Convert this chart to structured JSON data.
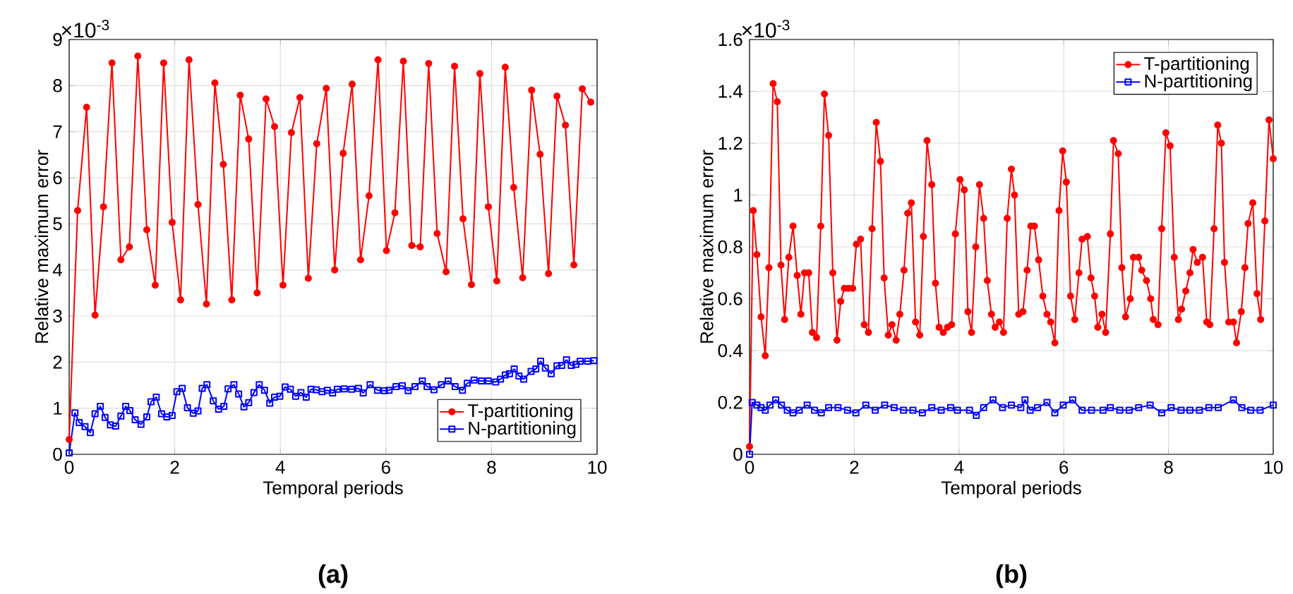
{
  "chart_data": [
    {
      "type": "line",
      "title": "**(a)**",
      "xlabel": "Temporal periods",
      "ylabel": "Relative maximum error",
      "annotations": [
        "×10$^{-3}$"
      ],
      "xlim": [
        0,
        10
      ],
      "ylim": [
        0,
        9
      ],
      "xticks": [
        0,
        2,
        4,
        6,
        8,
        10
      ],
      "yticks": [
        0,
        1,
        2,
        3,
        4,
        5,
        6,
        7,
        8,
        9
      ],
      "grid": true,
      "legend": "bottom right",
      "line_style": "solid",
      "series": [
        {
          "name": "T-partitioning",
          "color": "#ff0000",
          "marker": "circle",
          "x": [
            0,
            0.16,
            0.33,
            0.49,
            0.65,
            0.81,
            0.98,
            1.14,
            1.3,
            1.47,
            1.63,
            1.79,
            1.95,
            2.11,
            2.27,
            2.44,
            2.6,
            2.76,
            2.92,
            3.08,
            3.24,
            3.4,
            3.56,
            3.73,
            3.89,
            4.05,
            4.21,
            4.37,
            4.53,
            4.69,
            4.87,
            5.03,
            5.19,
            5.36,
            5.52,
            5.68,
            5.85,
            6.01,
            6.17,
            6.33,
            6.49,
            6.65,
            6.81,
            6.97,
            7.14,
            7.3,
            7.46,
            7.62,
            7.78,
            7.94,
            8.1,
            8.26,
            8.42,
            8.59,
            8.76,
            8.92,
            9.08,
            9.24,
            9.4,
            9.56,
            9.72,
            9.88
          ],
          "values": [
            0.32,
            5.29,
            7.53,
            3.02,
            5.37,
            8.49,
            4.22,
            4.5,
            8.64,
            4.87,
            3.67,
            8.49,
            5.03,
            3.35,
            8.56,
            5.42,
            3.26,
            8.06,
            6.29,
            3.35,
            7.79,
            6.84,
            3.5,
            7.71,
            7.11,
            3.67,
            6.98,
            7.74,
            3.82,
            6.74,
            7.94,
            4.0,
            6.53,
            8.03,
            4.22,
            5.61,
            8.56,
            4.42,
            5.24,
            8.53,
            4.53,
            4.5,
            8.48,
            4.79,
            3.96,
            8.42,
            5.11,
            3.68,
            8.26,
            5.37,
            3.76,
            8.4,
            5.79,
            3.83,
            7.9,
            6.51,
            3.92,
            7.77,
            7.14,
            4.11,
            7.93,
            7.64
          ]
        },
        {
          "name": "N-partitioning",
          "color": "#0000ff",
          "marker": "square",
          "x": [
            0,
            0.11,
            0.19,
            0.3,
            0.4,
            0.49,
            0.59,
            0.68,
            0.78,
            0.88,
            0.98,
            1.07,
            1.15,
            1.25,
            1.36,
            1.47,
            1.55,
            1.65,
            1.75,
            1.85,
            1.95,
            2.04,
            2.14,
            2.24,
            2.35,
            2.44,
            2.52,
            2.61,
            2.73,
            2.83,
            2.93,
            3.01,
            3.12,
            3.21,
            3.31,
            3.4,
            3.5,
            3.6,
            3.7,
            3.8,
            3.89,
            3.99,
            4.09,
            4.19,
            4.29,
            4.39,
            4.49,
            4.58,
            4.68,
            4.79,
            4.89,
            4.99,
            5.08,
            5.21,
            5.35,
            5.48,
            5.57,
            5.7,
            5.84,
            5.97,
            6.06,
            6.19,
            6.31,
            6.42,
            6.55,
            6.69,
            6.78,
            6.91,
            7.05,
            7.18,
            7.31,
            7.45,
            7.54,
            7.67,
            7.81,
            7.94,
            8.08,
            8.17,
            8.26,
            8.34,
            8.43,
            8.52,
            8.61,
            8.75,
            8.84,
            8.93,
            9.02,
            9.13,
            9.24,
            9.33,
            9.42,
            9.51,
            9.6,
            9.68,
            9.82,
            9.94
          ],
          "values": [
            0.03,
            0.9,
            0.69,
            0.6,
            0.47,
            0.88,
            1.04,
            0.8,
            0.64,
            0.61,
            0.83,
            1.04,
            0.95,
            0.75,
            0.65,
            0.81,
            1.14,
            1.24,
            0.88,
            0.81,
            0.84,
            1.36,
            1.43,
            1.01,
            0.89,
            0.94,
            1.43,
            1.51,
            1.16,
            0.98,
            1.04,
            1.42,
            1.51,
            1.31,
            1.03,
            1.12,
            1.34,
            1.51,
            1.39,
            1.11,
            1.24,
            1.26,
            1.46,
            1.41,
            1.26,
            1.34,
            1.24,
            1.41,
            1.4,
            1.36,
            1.39,
            1.33,
            1.41,
            1.42,
            1.41,
            1.43,
            1.33,
            1.51,
            1.39,
            1.38,
            1.39,
            1.47,
            1.49,
            1.38,
            1.47,
            1.59,
            1.47,
            1.4,
            1.51,
            1.59,
            1.47,
            1.39,
            1.54,
            1.61,
            1.59,
            1.59,
            1.57,
            1.63,
            1.72,
            1.75,
            1.85,
            1.7,
            1.63,
            1.8,
            1.85,
            2.02,
            1.87,
            1.75,
            1.92,
            1.93,
            2.05,
            1.93,
            1.95,
            2.02,
            2.02,
            2.03
          ]
        }
      ]
    },
    {
      "type": "line",
      "title": "**(b)**",
      "xlabel": "Temporal periods",
      "ylabel": "Relative maximum error",
      "annotations": [
        "×10$^{-3}$"
      ],
      "xlim": [
        0,
        10
      ],
      "ylim": [
        0,
        1.6
      ],
      "xticks": [
        0,
        2,
        4,
        6,
        8,
        10
      ],
      "yticks": [
        0,
        0.2,
        0.4,
        0.6,
        0.8,
        1,
        1.2,
        1.4,
        1.6
      ],
      "grid": true,
      "legend": "top right",
      "line_style": "solid",
      "series": [
        {
          "name": "T-partitioning",
          "color": "#ff0000",
          "marker": "circle",
          "x": [
            0,
            0.07,
            0.14,
            0.22,
            0.3,
            0.37,
            0.45,
            0.53,
            0.6,
            0.67,
            0.75,
            0.83,
            0.91,
            0.98,
            1.05,
            1.13,
            1.2,
            1.28,
            1.36,
            1.43,
            1.51,
            1.59,
            1.67,
            1.74,
            1.81,
            1.89,
            1.97,
            2.04,
            2.12,
            2.19,
            2.27,
            2.34,
            2.42,
            2.5,
            2.57,
            2.65,
            2.72,
            2.8,
            2.87,
            2.95,
            3.02,
            3.09,
            3.17,
            3.25,
            3.32,
            3.39,
            3.48,
            3.55,
            3.62,
            3.7,
            3.78,
            3.86,
            3.93,
            4.02,
            4.1,
            4.17,
            4.24,
            4.32,
            4.39,
            4.47,
            4.54,
            4.62,
            4.69,
            4.77,
            4.85,
            4.92,
            5.0,
            5.06,
            5.14,
            5.22,
            5.3,
            5.37,
            5.44,
            5.52,
            5.6,
            5.68,
            5.75,
            5.83,
            5.91,
            5.98,
            6.05,
            6.13,
            6.21,
            6.29,
            6.35,
            6.45,
            6.52,
            6.59,
            6.65,
            6.73,
            6.8,
            6.89,
            6.95,
            7.04,
            7.11,
            7.18,
            7.27,
            7.33,
            7.43,
            7.49,
            7.58,
            7.66,
            7.71,
            7.8,
            7.87,
            7.95,
            8.03,
            8.11,
            8.19,
            8.25,
            8.33,
            8.41,
            8.47,
            8.55,
            8.65,
            8.73,
            8.79,
            8.87,
            8.94,
            9.01,
            9.07,
            9.15,
            9.24,
            9.3,
            9.39,
            9.46,
            9.52,
            9.61,
            9.69,
            9.76,
            9.84,
            9.92,
            10.0
          ],
          "values": [
            0.03,
            0.94,
            0.77,
            0.53,
            0.38,
            0.72,
            1.43,
            1.36,
            0.73,
            0.52,
            0.76,
            0.88,
            0.69,
            0.54,
            0.7,
            0.7,
            0.47,
            0.45,
            0.88,
            1.39,
            1.23,
            0.7,
            0.44,
            0.59,
            0.64,
            0.64,
            0.64,
            0.81,
            0.83,
            0.5,
            0.47,
            0.87,
            1.28,
            1.13,
            0.68,
            0.46,
            0.5,
            0.44,
            0.54,
            0.71,
            0.93,
            0.97,
            0.51,
            0.46,
            0.84,
            1.21,
            1.04,
            0.66,
            0.49,
            0.47,
            0.49,
            0.5,
            0.85,
            1.06,
            1.02,
            0.55,
            0.47,
            0.8,
            1.04,
            0.91,
            0.67,
            0.54,
            0.49,
            0.51,
            0.47,
            0.91,
            1.1,
            1.0,
            0.54,
            0.55,
            0.71,
            0.88,
            0.88,
            0.75,
            0.61,
            0.54,
            0.51,
            0.43,
            0.94,
            1.17,
            1.05,
            0.61,
            0.52,
            0.7,
            0.83,
            0.84,
            0.68,
            0.61,
            0.49,
            0.54,
            0.47,
            0.85,
            1.21,
            1.16,
            0.72,
            0.53,
            0.6,
            0.76,
            0.76,
            0.71,
            0.67,
            0.6,
            0.52,
            0.5,
            0.87,
            1.24,
            1.19,
            0.76,
            0.52,
            0.56,
            0.63,
            0.7,
            0.79,
            0.74,
            0.76,
            0.51,
            0.5,
            0.87,
            1.27,
            1.2,
            0.74,
            0.51,
            0.51,
            0.43,
            0.55,
            0.72,
            0.89,
            0.97,
            0.62,
            0.52,
            0.9,
            1.29,
            1.14
          ]
        },
        {
          "name": "N-partitioning",
          "color": "#0000ff",
          "marker": "square",
          "x": [
            0,
            0.05,
            0.14,
            0.22,
            0.3,
            0.39,
            0.5,
            0.61,
            0.72,
            0.83,
            0.95,
            1.1,
            1.24,
            1.37,
            1.51,
            1.69,
            1.87,
            2.03,
            2.22,
            2.4,
            2.58,
            2.76,
            2.94,
            3.12,
            3.3,
            3.48,
            3.66,
            3.84,
            3.97,
            4.2,
            4.33,
            4.47,
            4.65,
            4.83,
            5.0,
            5.18,
            5.26,
            5.36,
            5.5,
            5.68,
            5.83,
            5.99,
            6.17,
            6.35,
            6.53,
            6.75,
            6.89,
            7.07,
            7.25,
            7.43,
            7.65,
            7.87,
            8.05,
            8.24,
            8.41,
            8.59,
            8.77,
            8.95,
            9.24,
            9.4,
            9.57,
            9.75,
            10.0
          ],
          "values": [
            0,
            0.2,
            0.19,
            0.18,
            0.17,
            0.19,
            0.21,
            0.19,
            0.17,
            0.16,
            0.17,
            0.19,
            0.17,
            0.16,
            0.18,
            0.18,
            0.17,
            0.16,
            0.19,
            0.17,
            0.19,
            0.18,
            0.17,
            0.17,
            0.16,
            0.18,
            0.17,
            0.18,
            0.17,
            0.17,
            0.15,
            0.18,
            0.21,
            0.18,
            0.19,
            0.18,
            0.21,
            0.17,
            0.18,
            0.2,
            0.16,
            0.19,
            0.21,
            0.17,
            0.17,
            0.17,
            0.18,
            0.17,
            0.17,
            0.18,
            0.19,
            0.16,
            0.18,
            0.17,
            0.17,
            0.17,
            0.18,
            0.18,
            0.21,
            0.18,
            0.17,
            0.17,
            0.19
          ]
        }
      ]
    }
  ]
}
